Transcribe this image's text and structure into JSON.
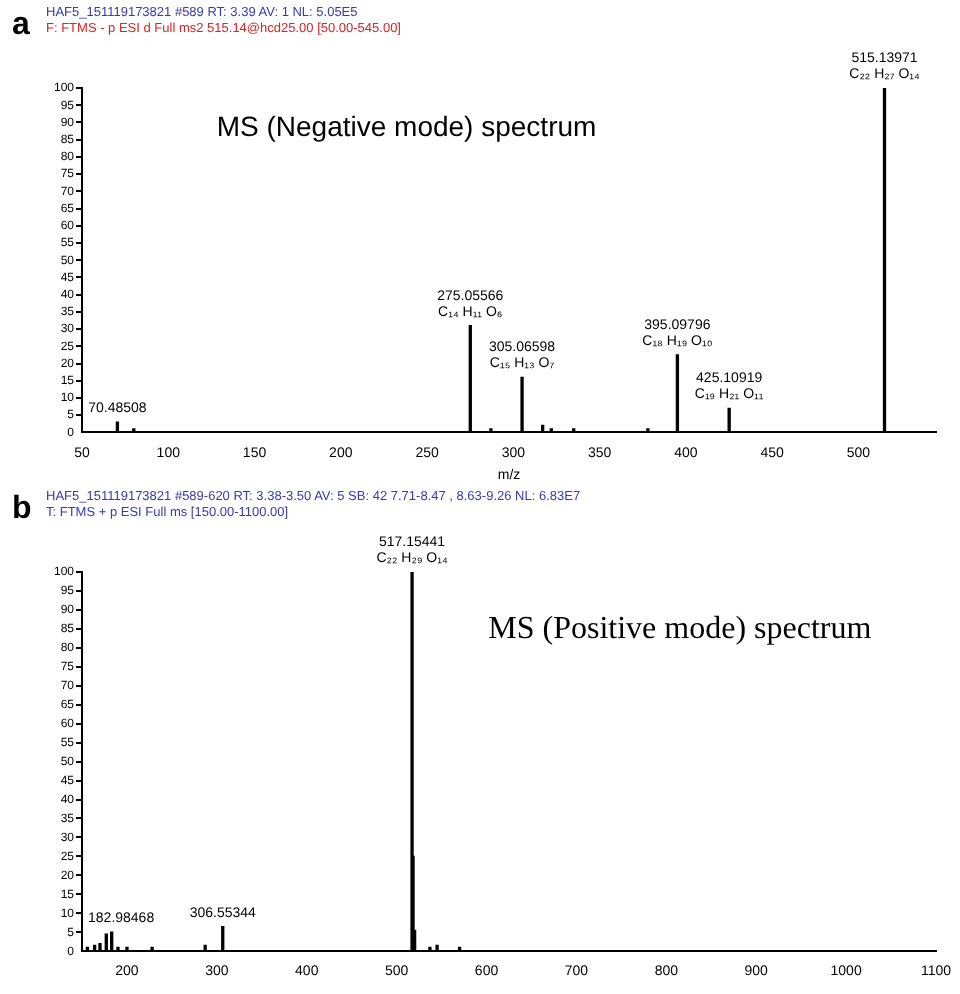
{
  "chart_data": [
    {
      "type": "bar",
      "title": "HAF5_151119173821 #589  RT: 3.39  AV: 1  NL: 5.05E5",
      "subtitle": "F: FTMS - p ESI d Full ms2 515.14@hcd25.00 [50.00-545.00]",
      "xlabel": "m/z",
      "color": "#000000",
      "x": [
        70.5,
        80,
        275.06,
        287,
        305.07,
        317,
        322,
        335,
        378,
        395.1,
        425.11,
        515.14
      ],
      "values": [
        3,
        1,
        31,
        1,
        16,
        2,
        1,
        1,
        1,
        22.5,
        7,
        100
      ],
      "xlim": [
        50,
        545
      ],
      "xticks": [
        50,
        100,
        150,
        200,
        250,
        300,
        350,
        400,
        450,
        500
      ],
      "ylim": [
        0,
        100
      ],
      "yticks": [
        0,
        5,
        10,
        15,
        20,
        25,
        30,
        35,
        40,
        45,
        50,
        55,
        60,
        65,
        70,
        75,
        80,
        85,
        90,
        95,
        100
      ],
      "annotations": [
        "a",
        "MS (Negative mode) spectrum",
        {
          "text": "70.48508",
          "x": 70.5,
          "y": 3
        },
        {
          "text": "275.05566",
          "x": 275.06,
          "y": 31
        },
        {
          "text": "C₁₄ H₁₁ O₆",
          "x": 275.06,
          "y": 31
        },
        {
          "text": "305.06598",
          "x": 305.07,
          "y": 16
        },
        {
          "text": "C₁₅ H₁₃ O₇",
          "x": 305.07,
          "y": 16
        },
        {
          "text": "395.09796",
          "x": 395.1,
          "y": 22.5
        },
        {
          "text": "C₁₈ H₁₉ O₁₀",
          "x": 395.1,
          "y": 22.5
        },
        {
          "text": "425.10919",
          "x": 425.11,
          "y": 7
        },
        {
          "text": "C₁₉ H₂₁ O₁₁",
          "x": 425.11,
          "y": 7
        },
        {
          "text": "515.13971",
          "x": 515.14,
          "y": 100
        },
        {
          "text": "C₂₂ H₂₇ O₁₄",
          "x": 515.14,
          "y": 100
        }
      ]
    },
    {
      "type": "bar",
      "title": "HAF5_151119173821 #589-620  RT: 3.38-3.50  AV: 5  SB: 42  7.71-8.47 , 8.63-9.26  NL: 6.83E7",
      "subtitle": "T: FTMS + p ESI Full ms [150.00-1100.00]",
      "color": "#000000",
      "x": [
        156,
        164,
        170,
        177,
        183,
        190,
        200,
        228,
        287,
        306.55,
        517.15,
        518.2,
        520,
        537,
        545,
        570
      ],
      "values": [
        1,
        1.5,
        2,
        4.5,
        5,
        1,
        1,
        1,
        1.5,
        6.5,
        100,
        25,
        5.5,
        1,
        1.5,
        1
      ],
      "xlim": [
        150,
        1100
      ],
      "xticks": [
        200,
        300,
        400,
        500,
        600,
        700,
        800,
        900,
        1000,
        1100
      ],
      "ylim": [
        0,
        100
      ],
      "yticks": [
        0,
        5,
        10,
        15,
        20,
        25,
        30,
        35,
        40,
        45,
        50,
        55,
        60,
        65,
        70,
        75,
        80,
        85,
        90,
        95,
        100
      ],
      "annotations": [
        "b",
        "MS (Positive mode) spectrum",
        {
          "text": "182.98468",
          "x": 183,
          "y": 5
        },
        {
          "text": "306.55344",
          "x": 306.55,
          "y": 6.5
        },
        {
          "text": "517.15441",
          "x": 517.15,
          "y": 100
        },
        {
          "text": "C₂₂ H₂₉ O₁₄",
          "x": 517.15,
          "y": 100
        }
      ]
    }
  ]
}
